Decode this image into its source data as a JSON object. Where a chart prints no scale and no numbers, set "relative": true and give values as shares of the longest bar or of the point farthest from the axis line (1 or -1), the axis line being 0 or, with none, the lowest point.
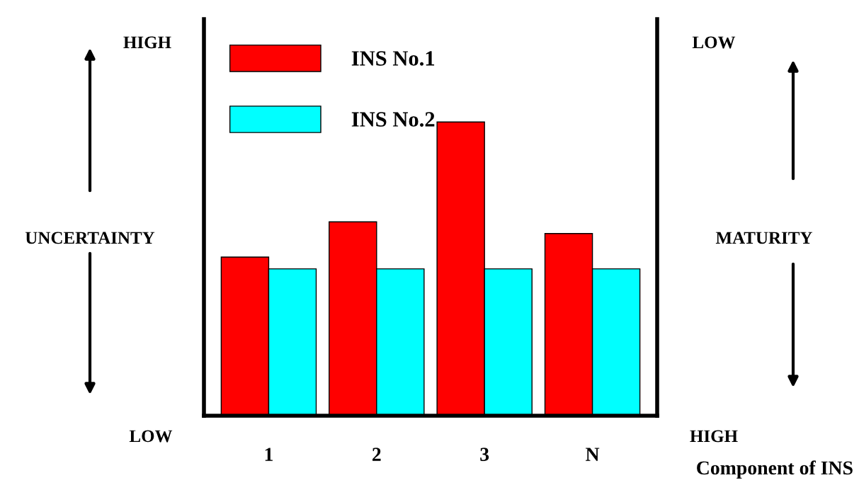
{
  "chart_data": {
    "type": "bar",
    "relative": true,
    "xlabel": "Component of INS",
    "categories": [
      "1",
      "2",
      "3",
      "N"
    ],
    "series": [
      {
        "name": "INS No.1",
        "color": "#ff0000",
        "values": [
          0.54,
          0.66,
          1.0,
          0.62
        ]
      },
      {
        "name": "INS No.2",
        "color": "#00ffff",
        "values": [
          0.5,
          0.5,
          0.5,
          0.5
        ]
      }
    ],
    "annotations": [
      "HIGH",
      "LOW",
      "UNCERTAINTY",
      "LOW",
      "HIGH",
      "MATURITY"
    ],
    "legend": "top left",
    "grid": false
  }
}
